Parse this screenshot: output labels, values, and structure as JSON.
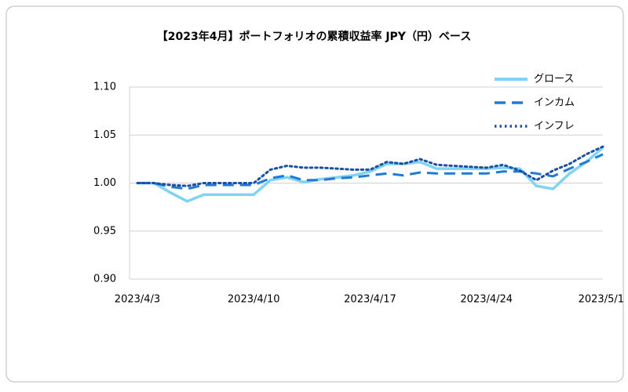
{
  "chart_data": {
    "type": "line",
    "title": "【2023年4月】ポートフォリオの累積収益率 JPY（円）ベース",
    "x": [
      "2023/4/3",
      "2023/4/4",
      "2023/4/5",
      "2023/4/6",
      "2023/4/7",
      "2023/4/8",
      "2023/4/9",
      "2023/4/10",
      "2023/4/11",
      "2023/4/12",
      "2023/4/13",
      "2023/4/14",
      "2023/4/15",
      "2023/4/16",
      "2023/4/17",
      "2023/4/18",
      "2023/4/19",
      "2023/4/20",
      "2023/4/21",
      "2023/4/22",
      "2023/4/23",
      "2023/4/24",
      "2023/4/25",
      "2023/4/26",
      "2023/4/27",
      "2023/4/28",
      "2023/4/29",
      "2023/4/30",
      "2023/5/1"
    ],
    "xticks": [
      "2023/4/3",
      "2023/4/10",
      "2023/4/17",
      "2023/4/24",
      "2023/5/1"
    ],
    "series": [
      {
        "name": "グロース",
        "color": "#7fd3f3",
        "style": "solid",
        "values": [
          1.0,
          1.0,
          0.99,
          0.981,
          0.988,
          0.988,
          0.988,
          0.988,
          1.003,
          1.006,
          1.001,
          1.004,
          1.006,
          1.008,
          1.012,
          1.02,
          1.02,
          1.022,
          1.015,
          1.015,
          1.015,
          1.015,
          1.016,
          1.015,
          0.997,
          0.994,
          1.01,
          1.022,
          1.037
        ]
      },
      {
        "name": "インカム",
        "color": "#1f7ad9",
        "style": "dashed",
        "values": [
          1.0,
          1.0,
          0.996,
          0.994,
          0.998,
          0.998,
          0.998,
          0.998,
          1.005,
          1.008,
          1.003,
          1.003,
          1.005,
          1.006,
          1.008,
          1.01,
          1.008,
          1.011,
          1.01,
          1.01,
          1.01,
          1.01,
          1.012,
          1.012,
          1.01,
          1.007,
          1.015,
          1.022,
          1.03
        ]
      },
      {
        "name": "インフレ",
        "color": "#1b4fa3",
        "style": "dotted",
        "values": [
          1.0,
          1.0,
          0.998,
          0.997,
          1.0,
          1.0,
          1.0,
          1.0,
          1.014,
          1.018,
          1.016,
          1.016,
          1.015,
          1.014,
          1.014,
          1.022,
          1.02,
          1.025,
          1.019,
          1.018,
          1.017,
          1.016,
          1.019,
          1.013,
          1.003,
          1.013,
          1.02,
          1.03,
          1.038
        ]
      }
    ],
    "ylim": [
      0.9,
      1.1
    ],
    "yticks": [
      {
        "value": 0.9,
        "label": "0.90"
      },
      0.95,
      {
        "value": 1.0,
        "label": "1.00"
      },
      1.05,
      {
        "value": 1.1,
        "label": "1.10"
      }
    ],
    "grid": true,
    "legend": "top-right"
  }
}
